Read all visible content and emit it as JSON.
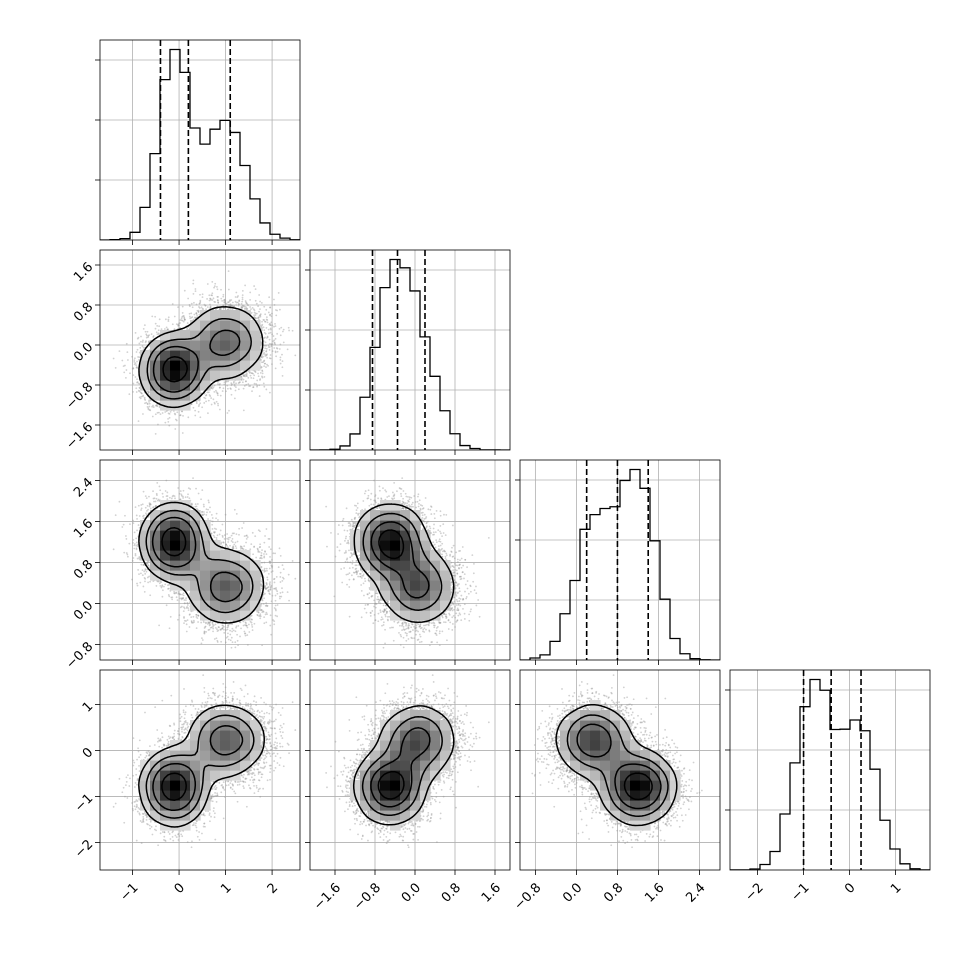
{
  "chart_data": {
    "type": "corner",
    "variables": [
      {
        "range": [
          -1.7,
          2.6
        ],
        "ticks": [
          -1,
          0,
          1,
          2
        ],
        "tick_labels": [
          "−1",
          "0",
          "1",
          "2"
        ],
        "quantiles": [
          -0.4,
          0.2,
          1.1
        ],
        "components": [
          {
            "weight": 0.55,
            "mean": -0.1,
            "sd": 0.33
          },
          {
            "weight": 0.45,
            "mean": 1.0,
            "sd": 0.42
          }
        ]
      },
      {
        "range": [
          -2.1,
          1.9
        ],
        "ticks": [
          -1.6,
          -0.8,
          0.0,
          0.8,
          1.6
        ],
        "tick_labels": [
          "−1.6",
          "−0.8",
          "0.0",
          "0.8",
          "1.6"
        ],
        "quantiles": [
          -0.85,
          -0.35,
          0.2
        ],
        "components": [
          {
            "weight": 0.55,
            "mean": -0.5,
            "sd": 0.33
          },
          {
            "weight": 0.45,
            "mean": 0.05,
            "sd": 0.38
          }
        ]
      },
      {
        "range": [
          -1.1,
          2.8
        ],
        "ticks": [
          -0.8,
          0.0,
          0.8,
          1.6,
          2.4
        ],
        "tick_labels": [
          "−0.8",
          "0.0",
          "0.8",
          "1.6",
          "2.4"
        ],
        "quantiles": [
          0.2,
          0.8,
          1.4
        ],
        "components": [
          {
            "weight": 0.55,
            "mean": 1.2,
            "sd": 0.35
          },
          {
            "weight": 0.45,
            "mean": 0.35,
            "sd": 0.38
          }
        ]
      },
      {
        "range": [
          -2.6,
          1.75
        ],
        "ticks": [
          -2,
          -1,
          0,
          1
        ],
        "tick_labels": [
          "−2",
          "−1",
          "0",
          "1"
        ],
        "quantiles": [
          -1.0,
          -0.4,
          0.25
        ],
        "components": [
          {
            "weight": 0.55,
            "mean": -0.8,
            "sd": 0.38
          },
          {
            "weight": 0.45,
            "mean": 0.2,
            "sd": 0.4
          }
        ]
      }
    ],
    "histogram_bins": 20,
    "levels_1d_ticks": 3,
    "grid": true,
    "line_color": "#000000",
    "scatter_color": "#999999"
  }
}
